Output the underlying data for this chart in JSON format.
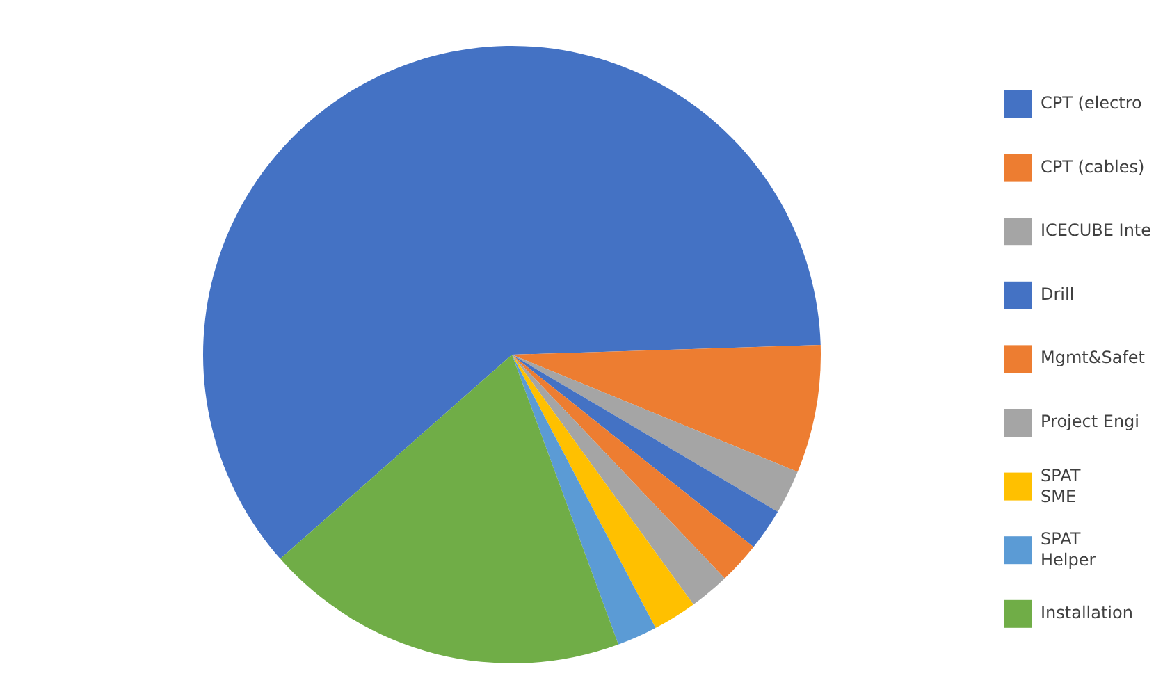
{
  "chart_data": {
    "type": "pie",
    "legend": "right",
    "categories": [
      "CPT (electro",
      "CPT (cables)",
      "ICECUBE Inte",
      "Drill",
      "Mgmt&Safet",
      "Project Engi",
      "SPAT\nSME",
      "SPAT\nHelper",
      "Installation"
    ],
    "values": [
      61.0,
      6.7,
      2.3,
      2.2,
      2.2,
      2.1,
      2.3,
      2.1,
      19.1
    ],
    "colors": [
      "#4472c4",
      "#ed7d31",
      "#a5a5a5",
      "#4472c4",
      "#ed7d31",
      "#a5a5a5",
      "#ffc000",
      "#5b9bd5",
      "#70ad47"
    ]
  }
}
